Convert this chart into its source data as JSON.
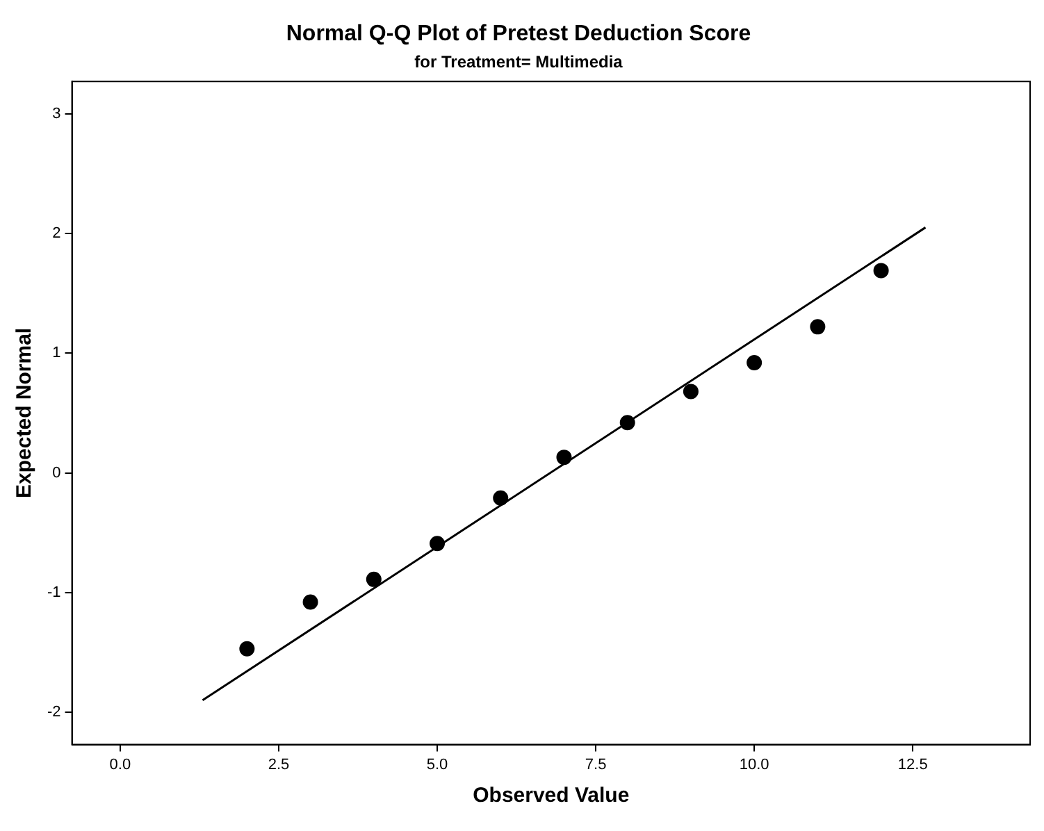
{
  "chart_data": {
    "type": "scatter",
    "title": "Normal Q-Q Plot of Pretest Deduction Score",
    "subtitle": "for Treatment= Multimedia",
    "xlabel": "Observed Value",
    "ylabel": "Expected Normal",
    "x": [
      2,
      3,
      4,
      5,
      6,
      7,
      8,
      9,
      10,
      11,
      12
    ],
    "series": [
      {
        "color": "#000000",
        "marker": "circle",
        "values": [
          -1.47,
          -1.08,
          -0.89,
          -0.59,
          -0.21,
          0.13,
          0.42,
          0.68,
          0.92,
          1.22,
          1.69
        ]
      },
      {
        "type": "line",
        "color": "#000000",
        "marker": "none",
        "x": [
          1.3,
          12.7
        ],
        "values": [
          -1.9,
          2.05
        ]
      }
    ],
    "xlim": [
      -0.76,
      14.35
    ],
    "ylim": [
      -2.27,
      3.27
    ],
    "xticks": [
      {
        "value": 0,
        "label": "0.0"
      },
      {
        "value": 2.5,
        "label": "2.5"
      },
      {
        "value": 5,
        "label": "5.0"
      },
      {
        "value": 7.5,
        "label": "7.5"
      },
      {
        "value": 10,
        "label": "10.0"
      },
      {
        "value": 12.5,
        "label": "12.5"
      }
    ],
    "yticks": [
      -2,
      -1,
      0,
      1,
      2,
      3
    ],
    "grid": false,
    "legend": false,
    "line_style": "solid"
  }
}
